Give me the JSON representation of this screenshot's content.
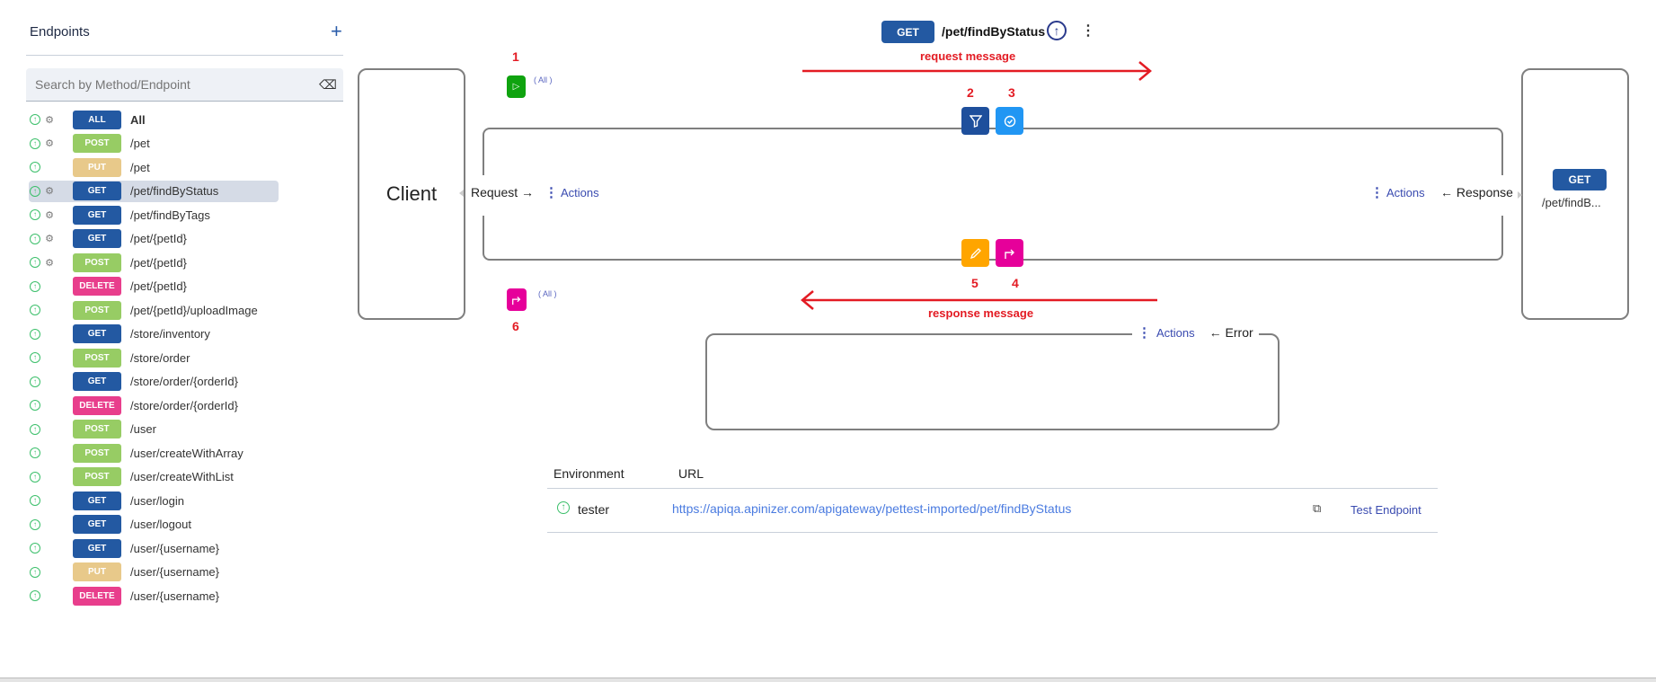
{
  "sidebar": {
    "title": "Endpoints",
    "add_icon": "plus-icon",
    "search": {
      "placeholder": "Search by Method/Endpoint",
      "value": "",
      "clear_icon": "eraser-icon"
    },
    "items": [
      {
        "method": "ALL",
        "path": "All",
        "gear": true,
        "selected": false
      },
      {
        "method": "POST",
        "path": "/pet",
        "gear": true,
        "selected": false
      },
      {
        "method": "PUT",
        "path": "/pet",
        "gear": false,
        "selected": false
      },
      {
        "method": "GET",
        "path": "/pet/findByStatus",
        "gear": true,
        "selected": true
      },
      {
        "method": "GET",
        "path": "/pet/findByTags",
        "gear": true,
        "selected": false
      },
      {
        "method": "GET",
        "path": "/pet/{petId}",
        "gear": true,
        "selected": false
      },
      {
        "method": "POST",
        "path": "/pet/{petId}",
        "gear": true,
        "selected": false
      },
      {
        "method": "DELETE",
        "path": "/pet/{petId}",
        "gear": false,
        "selected": false
      },
      {
        "method": "POST",
        "path": "/pet/{petId}/uploadImage",
        "gear": false,
        "selected": false
      },
      {
        "method": "GET",
        "path": "/store/inventory",
        "gear": false,
        "selected": false
      },
      {
        "method": "POST",
        "path": "/store/order",
        "gear": false,
        "selected": false
      },
      {
        "method": "GET",
        "path": "/store/order/{orderId}",
        "gear": false,
        "selected": false
      },
      {
        "method": "DELETE",
        "path": "/store/order/{orderId}",
        "gear": false,
        "selected": false
      },
      {
        "method": "POST",
        "path": "/user",
        "gear": false,
        "selected": false
      },
      {
        "method": "POST",
        "path": "/user/createWithArray",
        "gear": false,
        "selected": false
      },
      {
        "method": "POST",
        "path": "/user/createWithList",
        "gear": false,
        "selected": false
      },
      {
        "method": "GET",
        "path": "/user/login",
        "gear": false,
        "selected": false
      },
      {
        "method": "GET",
        "path": "/user/logout",
        "gear": false,
        "selected": false
      },
      {
        "method": "GET",
        "path": "/user/{username}",
        "gear": false,
        "selected": false
      },
      {
        "method": "PUT",
        "path": "/user/{username}",
        "gear": false,
        "selected": false
      },
      {
        "method": "DELETE",
        "path": "/user/{username}",
        "gear": false,
        "selected": false
      }
    ]
  },
  "method_colors": {
    "ALL": "#2359a2",
    "GET": "#2359a2",
    "POST": "#97cc64",
    "PUT": "#e8c98a",
    "DELETE": "#e83e8c"
  },
  "header": {
    "method": "GET",
    "path": "/pet/findByStatus"
  },
  "flow": {
    "client_label": "Client",
    "request_label": "Request →",
    "response_label": "← Response",
    "error_label": "← Error",
    "actions_label": "Actions",
    "all_label": "( All )",
    "request_message": "request message",
    "response_message": "response message",
    "numbers": [
      "1",
      "2",
      "3",
      "4",
      "5",
      "6"
    ],
    "backend": {
      "method": "GET",
      "path": "/pet/findB..."
    },
    "colors": {
      "play": "#0fa30f",
      "filter": "#1e4f9c",
      "validate": "#2196f3",
      "edit": "#ffa500",
      "redirect": "#e6009a",
      "annotation": "#e31b23"
    }
  },
  "table": {
    "headers": [
      "Environment",
      "URL"
    ],
    "rows": [
      {
        "environment": "tester",
        "url": "https://apiqa.apinizer.com/apigateway/pettest-imported/pet/findByStatus",
        "action": "Test Endpoint"
      }
    ]
  }
}
